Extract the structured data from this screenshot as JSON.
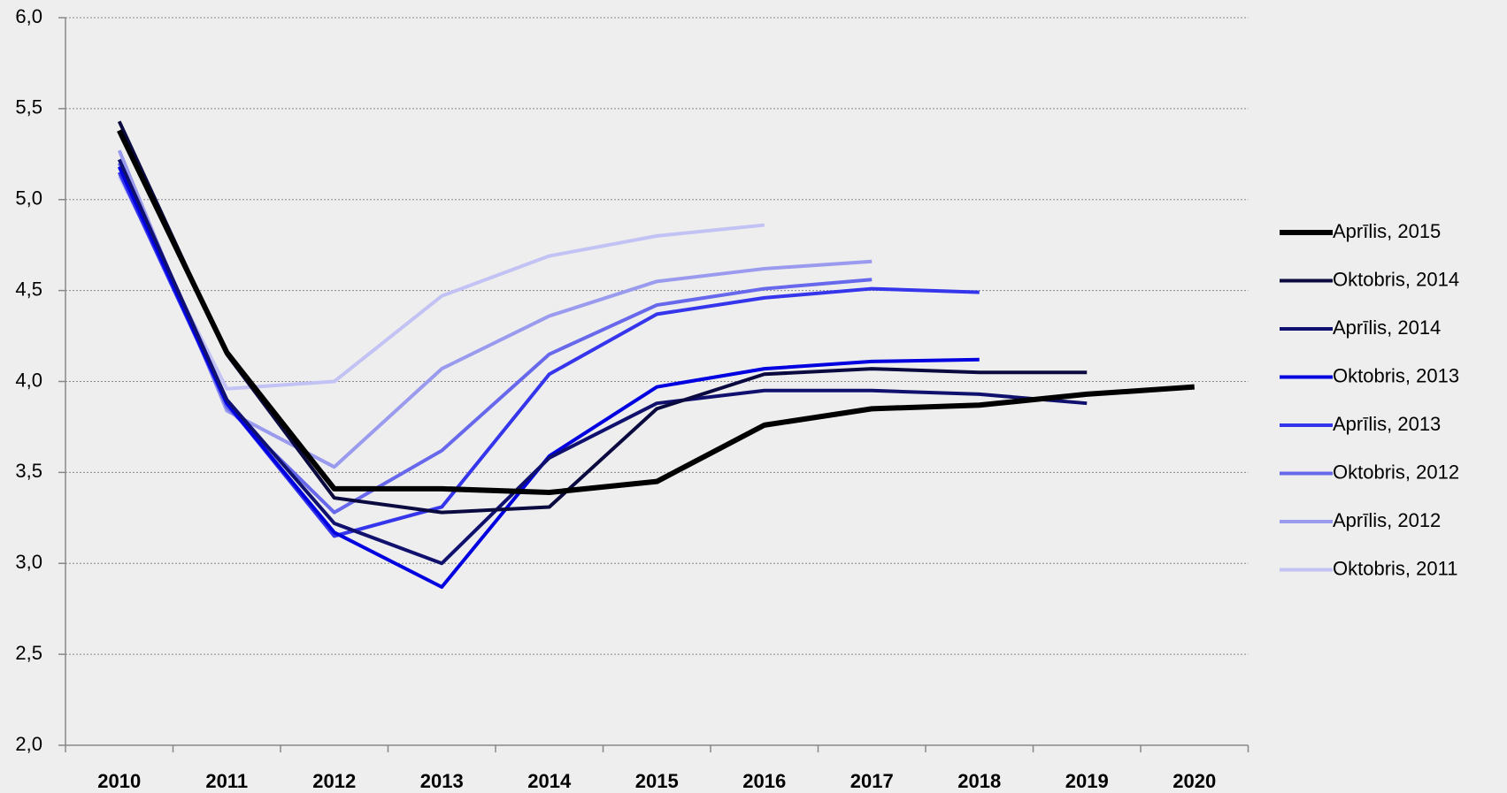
{
  "chart_data": {
    "type": "line",
    "categories": [
      "2010",
      "2011",
      "2012",
      "2013",
      "2014",
      "2015",
      "2016",
      "2017",
      "2018",
      "2019",
      "2020"
    ],
    "ylim": [
      2.0,
      6.0
    ],
    "yticks": [
      {
        "value": 2.0,
        "label": "2,0"
      },
      {
        "value": 2.5,
        "label": "2,5"
      },
      {
        "value": 3.0,
        "label": "3,0"
      },
      {
        "value": 3.5,
        "label": "3,5"
      },
      {
        "value": 4.0,
        "label": "4,0"
      },
      {
        "value": 4.5,
        "label": "4,5"
      },
      {
        "value": 5.0,
        "label": "5,0"
      },
      {
        "value": 5.5,
        "label": "5,5"
      },
      {
        "value": 6.0,
        "label": "6,0"
      }
    ],
    "grid": true,
    "legend": "right",
    "series": [
      {
        "name": "Aprīlis, 2015",
        "color": "#000000",
        "values": [
          5.38,
          4.16,
          3.41,
          3.41,
          3.39,
          3.45,
          3.76,
          3.85,
          3.87,
          3.93,
          3.97
        ]
      },
      {
        "name": "Oktobris, 2014",
        "color": "#0a0a40",
        "values": [
          5.43,
          4.15,
          3.36,
          3.28,
          3.31,
          3.85,
          4.04,
          4.07,
          4.05,
          4.05,
          null
        ]
      },
      {
        "name": "Aprīlis, 2014",
        "color": "#10106e",
        "values": [
          5.22,
          3.9,
          3.22,
          3.0,
          3.58,
          3.88,
          3.95,
          3.95,
          3.93,
          3.88,
          null
        ]
      },
      {
        "name": "Oktobris, 2013",
        "color": "#0000e0",
        "values": [
          5.18,
          3.88,
          3.17,
          2.87,
          3.59,
          3.97,
          4.07,
          4.11,
          4.12,
          null,
          null
        ]
      },
      {
        "name": "Aprīlis, 2013",
        "color": "#3535ec",
        "values": [
          5.15,
          3.88,
          3.15,
          3.31,
          4.04,
          4.37,
          4.46,
          4.51,
          4.49,
          null,
          null
        ]
      },
      {
        "name": "Oktobris, 2012",
        "color": "#6868ec",
        "values": [
          5.2,
          3.86,
          3.28,
          3.62,
          4.15,
          4.42,
          4.51,
          4.56,
          null,
          null,
          null
        ]
      },
      {
        "name": "Aprīlis, 2012",
        "color": "#9a9aee",
        "values": [
          5.27,
          3.84,
          3.53,
          4.07,
          4.36,
          4.55,
          4.62,
          4.66,
          null,
          null,
          null
        ]
      },
      {
        "name": "Oktobris, 2011",
        "color": "#c2c2f4",
        "values": [
          5.13,
          3.96,
          4.0,
          4.47,
          4.69,
          4.8,
          4.86,
          null,
          null,
          null,
          null
        ]
      }
    ]
  }
}
